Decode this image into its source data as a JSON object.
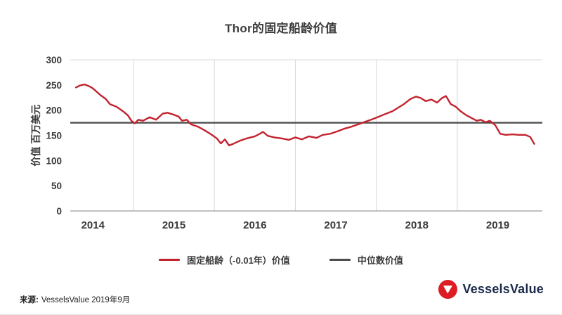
{
  "title": "Thor的固定船龄价值",
  "chart_data": {
    "type": "line",
    "title": "Thor的固定船龄价值",
    "xlabel": "",
    "ylabel": "价值 百万美元",
    "xlim": [
      2013.72,
      2019.55
    ],
    "ylim": [
      0,
      300
    ],
    "y_ticks": [
      0,
      50,
      100,
      150,
      200,
      250,
      300
    ],
    "x_ticks": [
      2014,
      2015,
      2016,
      2017,
      2018,
      2019
    ],
    "x_gridlines": [
      2014.5,
      2015.5,
      2016.5,
      2017.5,
      2018.5
    ],
    "grid": "vertical-only",
    "legend_position": "bottom",
    "series": [
      {
        "name": "固定船龄（-0.01年）价值",
        "type": "line",
        "color": "#c3232e",
        "points": [
          [
            2013.79,
            245
          ],
          [
            2013.84,
            249
          ],
          [
            2013.9,
            251
          ],
          [
            2013.96,
            247
          ],
          [
            2014.0,
            243
          ],
          [
            2014.05,
            236
          ],
          [
            2014.1,
            229
          ],
          [
            2014.16,
            222
          ],
          [
            2014.21,
            212
          ],
          [
            2014.29,
            207
          ],
          [
            2014.37,
            198
          ],
          [
            2014.43,
            190
          ],
          [
            2014.48,
            178
          ],
          [
            2014.52,
            174
          ],
          [
            2014.56,
            181
          ],
          [
            2014.62,
            179
          ],
          [
            2014.7,
            186
          ],
          [
            2014.78,
            181
          ],
          [
            2014.86,
            193
          ],
          [
            2014.92,
            195
          ],
          [
            2015.0,
            191
          ],
          [
            2015.06,
            187
          ],
          [
            2015.1,
            179
          ],
          [
            2015.16,
            181
          ],
          [
            2015.21,
            172
          ],
          [
            2015.3,
            167
          ],
          [
            2015.38,
            160
          ],
          [
            2015.46,
            152
          ],
          [
            2015.53,
            144
          ],
          [
            2015.58,
            134
          ],
          [
            2015.63,
            142
          ],
          [
            2015.68,
            130
          ],
          [
            2015.73,
            133
          ],
          [
            2015.81,
            139
          ],
          [
            2015.9,
            144
          ],
          [
            2016.0,
            148
          ],
          [
            2016.06,
            153
          ],
          [
            2016.1,
            157
          ],
          [
            2016.16,
            149
          ],
          [
            2016.24,
            146
          ],
          [
            2016.33,
            144
          ],
          [
            2016.42,
            141
          ],
          [
            2016.5,
            146
          ],
          [
            2016.58,
            142
          ],
          [
            2016.67,
            148
          ],
          [
            2016.76,
            145
          ],
          [
            2016.84,
            151
          ],
          [
            2016.93,
            153
          ],
          [
            2017.02,
            158
          ],
          [
            2017.1,
            163
          ],
          [
            2017.19,
            167
          ],
          [
            2017.28,
            172
          ],
          [
            2017.36,
            177
          ],
          [
            2017.45,
            182
          ],
          [
            2017.53,
            187
          ],
          [
            2017.62,
            193
          ],
          [
            2017.7,
            198
          ],
          [
            2017.77,
            205
          ],
          [
            2017.84,
            212
          ],
          [
            2017.92,
            222
          ],
          [
            2017.99,
            227
          ],
          [
            2018.05,
            224
          ],
          [
            2018.11,
            218
          ],
          [
            2018.18,
            221
          ],
          [
            2018.25,
            215
          ],
          [
            2018.31,
            224
          ],
          [
            2018.36,
            228
          ],
          [
            2018.42,
            212
          ],
          [
            2018.48,
            207
          ],
          [
            2018.54,
            198
          ],
          [
            2018.61,
            190
          ],
          [
            2018.68,
            184
          ],
          [
            2018.74,
            179
          ],
          [
            2018.79,
            181
          ],
          [
            2018.85,
            176
          ],
          [
            2018.9,
            179
          ],
          [
            2018.97,
            170
          ],
          [
            2019.03,
            153
          ],
          [
            2019.1,
            151
          ],
          [
            2019.18,
            152
          ],
          [
            2019.26,
            151
          ],
          [
            2019.34,
            151
          ],
          [
            2019.4,
            147
          ],
          [
            2019.45,
            133
          ]
        ]
      },
      {
        "name": "中位数价值",
        "type": "hline",
        "color": "#4d4d4d",
        "value": 175
      }
    ]
  },
  "footer": {
    "source_label": "来源:",
    "source_text": "VesselsValue 2019年9月",
    "logo_text": "VesselsValue"
  },
  "colors": {
    "line_red": "#c3232e",
    "median_gray": "#4d4d4d",
    "logo_red": "#dd1d23",
    "logo_navy": "#1b2a4b",
    "gridline": "#d8d8d8",
    "axis": "#9b9b9b",
    "text": "#3a3a3a"
  }
}
